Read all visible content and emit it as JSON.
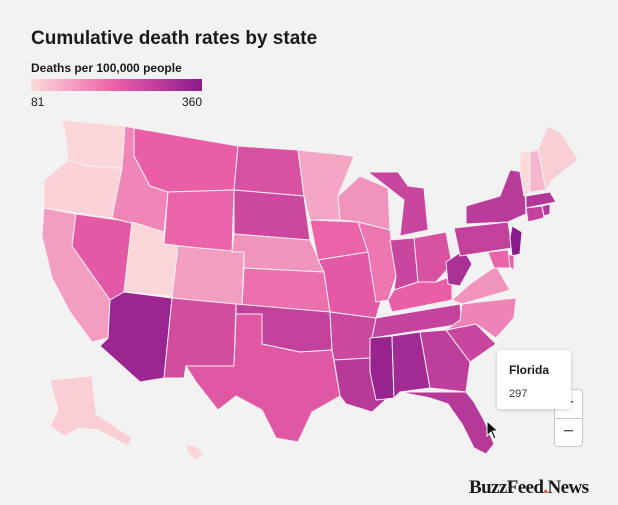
{
  "title": "Cumulative death rates by state",
  "legend": {
    "label": "Deaths per 100,000 people",
    "min": "81",
    "max": "360",
    "color_low": "#fbdada",
    "color_high": "#8a1a8c"
  },
  "tooltip": {
    "state": "Florida",
    "value": "297"
  },
  "zoom": {
    "in": "+",
    "out": "−"
  },
  "branding": {
    "name": "BuzzFeed",
    "dot": ".",
    "suffix": "News"
  },
  "colors": {
    "background": "#f2f2f2",
    "state_border": "#f4f0f2"
  },
  "map_data": {
    "metric": "Deaths per 100,000 people",
    "states": [
      {
        "code": "WA",
        "value": 85
      },
      {
        "code": "OR",
        "value": 90
      },
      {
        "code": "CA",
        "value": 150
      },
      {
        "code": "NV",
        "value": 230
      },
      {
        "code": "ID",
        "value": 175
      },
      {
        "code": "MT",
        "value": 220
      },
      {
        "code": "WY",
        "value": 215
      },
      {
        "code": "UT",
        "value": 85
      },
      {
        "code": "CO",
        "value": 150
      },
      {
        "code": "AZ",
        "value": 335
      },
      {
        "code": "NM",
        "value": 255
      },
      {
        "code": "ND",
        "value": 245
      },
      {
        "code": "SD",
        "value": 265
      },
      {
        "code": "NE",
        "value": 160
      },
      {
        "code": "KS",
        "value": 200
      },
      {
        "code": "OK",
        "value": 280
      },
      {
        "code": "TX",
        "value": 235
      },
      {
        "code": "MN",
        "value": 140
      },
      {
        "code": "IA",
        "value": 215
      },
      {
        "code": "MO",
        "value": 230
      },
      {
        "code": "AR",
        "value": 265
      },
      {
        "code": "LA",
        "value": 295
      },
      {
        "code": "WI",
        "value": 160
      },
      {
        "code": "IL",
        "value": 195
      },
      {
        "code": "MI",
        "value": 270
      },
      {
        "code": "IN",
        "value": 270
      },
      {
        "code": "OH",
        "value": 245
      },
      {
        "code": "KY",
        "value": 220
      },
      {
        "code": "TN",
        "value": 275
      },
      {
        "code": "MS",
        "value": 340
      },
      {
        "code": "AL",
        "value": 325
      },
      {
        "code": "GA",
        "value": 285
      },
      {
        "code": "FL",
        "value": 297
      },
      {
        "code": "SC",
        "value": 270
      },
      {
        "code": "NC",
        "value": 180
      },
      {
        "code": "VA",
        "value": 160
      },
      {
        "code": "WV",
        "value": 315
      },
      {
        "code": "PA",
        "value": 280
      },
      {
        "code": "NY",
        "value": 290
      },
      {
        "code": "NJ",
        "value": 360
      },
      {
        "code": "DE",
        "value": 220
      },
      {
        "code": "MD",
        "value": 215
      },
      {
        "code": "CT",
        "value": 275
      },
      {
        "code": "RI",
        "value": 300
      },
      {
        "code": "MA",
        "value": 300
      },
      {
        "code": "VT",
        "value": 81
      },
      {
        "code": "NH",
        "value": 120
      },
      {
        "code": "ME",
        "value": 95
      },
      {
        "code": "AK",
        "value": 95
      },
      {
        "code": "HI",
        "value": 85
      }
    ]
  }
}
